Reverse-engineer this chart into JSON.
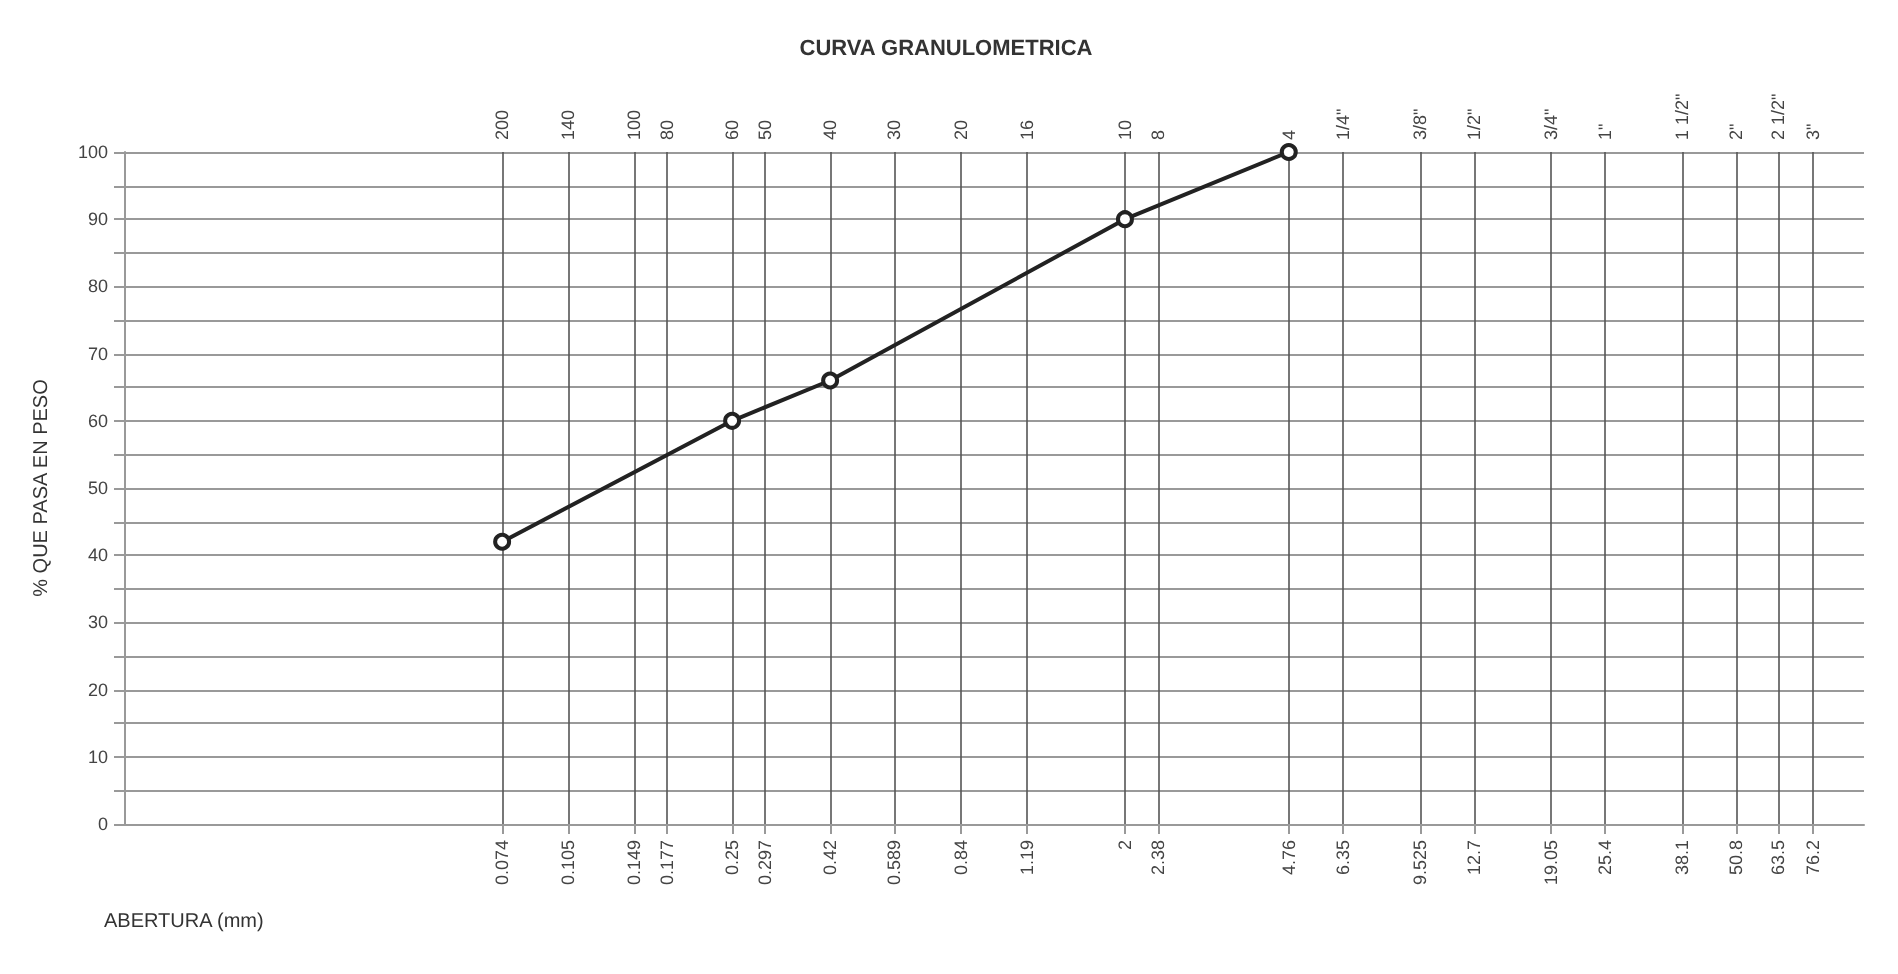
{
  "chart_data": {
    "type": "line",
    "title": "CURVA GRANULOMETRICA",
    "xlabel": "ABERTURA (mm)",
    "ylabel": "% QUE PASA EN PESO",
    "log": "x",
    "grid": true,
    "marker": "circle",
    "line_style": "solid",
    "xlim": [
      0.01,
      100
    ],
    "ylim": [
      0,
      100
    ],
    "xticks": [
      {
        "value": 0.074,
        "label": "0.074"
      },
      {
        "value": 0.105,
        "label": "0.105"
      },
      {
        "value": 0.149,
        "label": "0.149"
      },
      {
        "value": 0.177,
        "label": "0.177"
      },
      {
        "value": 0.25,
        "label": "0.25"
      },
      {
        "value": 0.297,
        "label": "0.297"
      },
      {
        "value": 0.42,
        "label": "0.42"
      },
      {
        "value": 0.589,
        "label": "0.589"
      },
      {
        "value": 0.84,
        "label": "0.84"
      },
      {
        "value": 1.19,
        "label": "1.19"
      },
      {
        "value": 2,
        "label": "2"
      },
      {
        "value": 2.38,
        "label": "2.38"
      },
      {
        "value": 4.76,
        "label": "4.76"
      },
      {
        "value": 6.35,
        "label": "6.35"
      },
      {
        "value": 9.525,
        "label": "9.525"
      },
      {
        "value": 12.7,
        "label": "12.7"
      },
      {
        "value": 19.05,
        "label": "19.05"
      },
      {
        "value": 25.4,
        "label": "25.4"
      },
      {
        "value": 38.1,
        "label": "38.1"
      },
      {
        "value": 50.8,
        "label": "50.8"
      },
      {
        "value": 63.5,
        "label": "63.5"
      },
      {
        "value": 76.2,
        "label": "76.2"
      }
    ],
    "annotations": [
      "200",
      "140",
      "100",
      "80",
      "60",
      "50",
      "40",
      "30",
      "20",
      "16",
      "10",
      "8",
      "4",
      "1/4\"",
      "3/8\"",
      "1/2\"",
      "3/4\"",
      "1\"",
      "1 1/2\"",
      "2\"",
      "2 1/2\"",
      "3\""
    ],
    "yticks": [
      0,
      {
        "value": 5,
        "label": null
      },
      10,
      {
        "value": 15,
        "label": null
      },
      20,
      {
        "value": 25,
        "label": null
      },
      30,
      {
        "value": 35,
        "label": null
      },
      40,
      {
        "value": 45,
        "label": null
      },
      50,
      {
        "value": 55,
        "label": null
      },
      60,
      {
        "value": 65,
        "label": null
      },
      70,
      {
        "value": 75,
        "label": null
      },
      80,
      {
        "value": 85,
        "label": null
      },
      90,
      {
        "value": 95,
        "label": null
      },
      100
    ],
    "series": [
      {
        "color": "#222222",
        "x": [
          0.074,
          0.25,
          0.42,
          2,
          4.76
        ],
        "values": [
          42,
          60,
          66,
          90,
          100
        ]
      }
    ]
  }
}
